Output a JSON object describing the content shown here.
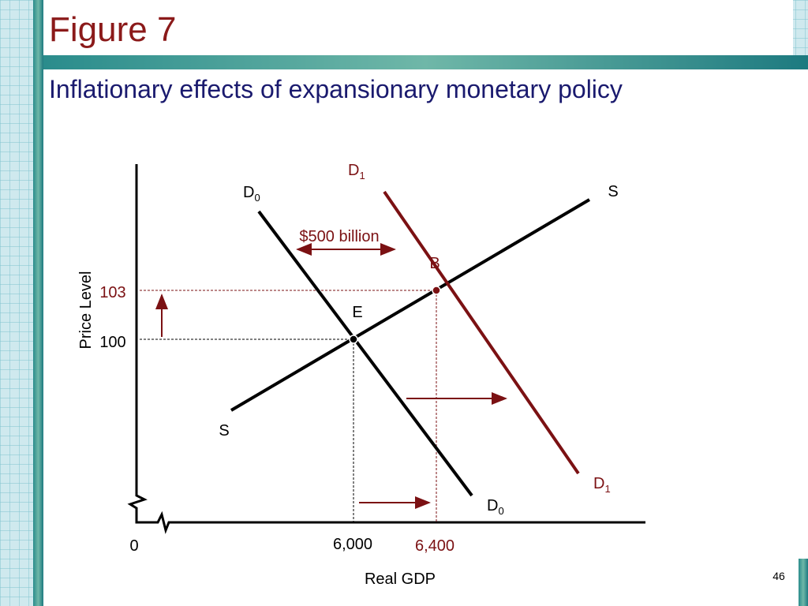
{
  "header": {
    "title": "Figure 7",
    "subtitle": "Inflationary effects of expansionary monetary policy"
  },
  "diagram": {
    "y_axis_label": "Price Level",
    "x_axis_label": "Real GDP",
    "origin_label": "0",
    "price_labels": [
      "103",
      "100"
    ],
    "gdp_labels": [
      "6,000",
      "6,400"
    ],
    "shift_label": "$500 billion",
    "points": [
      "B",
      "E"
    ],
    "supply_labels": [
      "S",
      "S"
    ],
    "demand_labels": [
      {
        "main": "D",
        "sub": "1"
      },
      {
        "main": "D",
        "sub": "0"
      },
      {
        "main": "D",
        "sub": "1"
      },
      {
        "main": "D",
        "sub": "0"
      }
    ]
  },
  "page_number": "46"
}
